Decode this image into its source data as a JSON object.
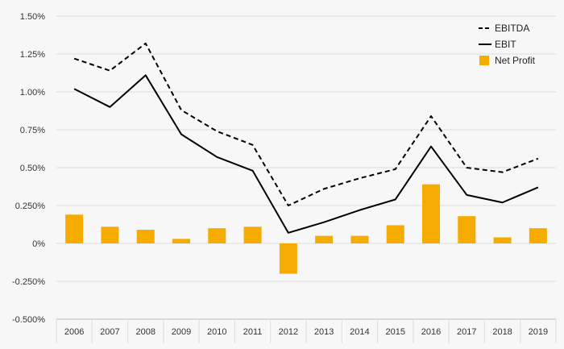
{
  "chart_data": {
    "type": "bar",
    "title": "",
    "xlabel": "",
    "ylabel": "",
    "categories": [
      "2006",
      "2007",
      "2008",
      "2009",
      "2010",
      "2011",
      "2012",
      "2013",
      "2014",
      "2015",
      "2016",
      "2017",
      "2018",
      "2019"
    ],
    "y_ticks": [
      "1.50%",
      "1.25%",
      "1.00%",
      "0.75%",
      "0.50%",
      "0.250%",
      "0%",
      "-0.250%",
      "-0.500%"
    ],
    "ylim": [
      -0.5,
      1.5
    ],
    "grid": true,
    "legend_position": "top-right",
    "series": [
      {
        "name": "EBITDA",
        "kind": "line",
        "style": "dashed",
        "color": "#000000",
        "values": [
          1.22,
          1.14,
          1.32,
          0.88,
          0.74,
          0.65,
          0.25,
          0.36,
          0.43,
          0.49,
          0.84,
          0.5,
          0.47,
          0.56
        ]
      },
      {
        "name": "EBIT",
        "kind": "line",
        "style": "solid",
        "color": "#000000",
        "values": [
          1.02,
          0.9,
          1.11,
          0.72,
          0.57,
          0.48,
          0.07,
          0.14,
          0.22,
          0.29,
          0.64,
          0.32,
          0.27,
          0.37
        ]
      },
      {
        "name": "Net Profit",
        "kind": "bar",
        "color": "#f5ab00",
        "values": [
          0.19,
          0.11,
          0.09,
          0.03,
          0.1,
          0.11,
          -0.2,
          0.05,
          0.05,
          0.12,
          0.39,
          0.18,
          0.04,
          0.1
        ]
      }
    ]
  }
}
